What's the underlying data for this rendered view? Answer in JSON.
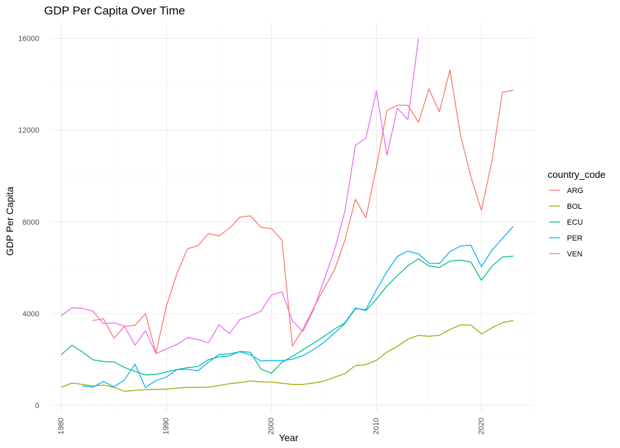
{
  "chart_data": {
    "type": "line",
    "title": "GDP Per Capita Over Time",
    "xlabel": "Year",
    "ylabel": "GDP Per Capita",
    "xlim": [
      1979,
      2025
    ],
    "ylim": [
      0,
      16000
    ],
    "x_ticks": [
      1980,
      1990,
      2000,
      2010,
      2020
    ],
    "y_ticks": [
      0,
      4000,
      8000,
      12000,
      16000
    ],
    "grid": true,
    "legend": {
      "title": "country_code",
      "position": "right"
    },
    "series": [
      {
        "name": "ARG",
        "color": "#F8766D",
        "points": [
          [
            1983,
            3700
          ],
          [
            1984,
            3770
          ],
          [
            1985,
            2920
          ],
          [
            1986,
            3440
          ],
          [
            1987,
            3480
          ],
          [
            1988,
            3990
          ],
          [
            1989,
            2290
          ],
          [
            1990,
            4330
          ],
          [
            1991,
            5750
          ],
          [
            1992,
            6820
          ],
          [
            1993,
            6960
          ],
          [
            1994,
            7480
          ],
          [
            1995,
            7390
          ],
          [
            1996,
            7710
          ],
          [
            1997,
            8200
          ],
          [
            1998,
            8260
          ],
          [
            1999,
            7760
          ],
          [
            2000,
            7700
          ],
          [
            2001,
            7210
          ],
          [
            2002,
            2580
          ],
          [
            2003,
            3320
          ],
          [
            2004,
            4220
          ],
          [
            2005,
            5090
          ],
          [
            2006,
            5890
          ],
          [
            2007,
            7200
          ],
          [
            2008,
            8980
          ],
          [
            2009,
            8170
          ],
          [
            2010,
            10380
          ],
          [
            2011,
            12850
          ],
          [
            2012,
            13080
          ],
          [
            2013,
            13080
          ],
          [
            2014,
            12330
          ],
          [
            2015,
            13790
          ],
          [
            2016,
            12790
          ],
          [
            2017,
            14620
          ],
          [
            2018,
            11790
          ],
          [
            2019,
            9950
          ],
          [
            2020,
            8500
          ],
          [
            2021,
            10640
          ],
          [
            2022,
            13650
          ],
          [
            2023,
            13730
          ]
        ]
      },
      {
        "name": "BOL",
        "color": "#A3A500",
        "points": [
          [
            1980,
            790
          ],
          [
            1981,
            970
          ],
          [
            1982,
            910
          ],
          [
            1983,
            840
          ],
          [
            1984,
            880
          ],
          [
            1985,
            790
          ],
          [
            1986,
            610
          ],
          [
            1987,
            650
          ],
          [
            1988,
            680
          ],
          [
            1989,
            690
          ],
          [
            1990,
            700
          ],
          [
            1991,
            750
          ],
          [
            1992,
            780
          ],
          [
            1993,
            780
          ],
          [
            1994,
            790
          ],
          [
            1995,
            860
          ],
          [
            1996,
            940
          ],
          [
            1997,
            990
          ],
          [
            1998,
            1060
          ],
          [
            1999,
            1020
          ],
          [
            2000,
            1010
          ],
          [
            2001,
            960
          ],
          [
            2002,
            910
          ],
          [
            2003,
            910
          ],
          [
            2004,
            970
          ],
          [
            2005,
            1050
          ],
          [
            2006,
            1220
          ],
          [
            2007,
            1380
          ],
          [
            2008,
            1730
          ],
          [
            2009,
            1770
          ],
          [
            2010,
            1960
          ],
          [
            2011,
            2320
          ],
          [
            2012,
            2570
          ],
          [
            2013,
            2880
          ],
          [
            2014,
            3050
          ],
          [
            2015,
            3010
          ],
          [
            2016,
            3050
          ],
          [
            2017,
            3300
          ],
          [
            2018,
            3500
          ],
          [
            2019,
            3500
          ],
          [
            2020,
            3110
          ],
          [
            2021,
            3380
          ],
          [
            2022,
            3600
          ],
          [
            2023,
            3690
          ]
        ]
      },
      {
        "name": "ECU",
        "color": "#00BF7D",
        "points": [
          [
            1980,
            2210
          ],
          [
            1981,
            2620
          ],
          [
            1982,
            2320
          ],
          [
            1983,
            1980
          ],
          [
            1984,
            1910
          ],
          [
            1985,
            1890
          ],
          [
            1986,
            1650
          ],
          [
            1987,
            1480
          ],
          [
            1988,
            1320
          ],
          [
            1989,
            1350
          ],
          [
            1990,
            1450
          ],
          [
            1991,
            1560
          ],
          [
            1992,
            1640
          ],
          [
            1993,
            1690
          ],
          [
            1994,
            1990
          ],
          [
            1995,
            2110
          ],
          [
            1996,
            2150
          ],
          [
            1997,
            2350
          ],
          [
            1998,
            2310
          ],
          [
            1999,
            1580
          ],
          [
            2000,
            1400
          ],
          [
            2001,
            1870
          ],
          [
            2002,
            2130
          ],
          [
            2003,
            2420
          ],
          [
            2004,
            2700
          ],
          [
            2005,
            3000
          ],
          [
            2006,
            3320
          ],
          [
            2007,
            3590
          ],
          [
            2008,
            4240
          ],
          [
            2009,
            4130
          ],
          [
            2010,
            4630
          ],
          [
            2011,
            5200
          ],
          [
            2012,
            5650
          ],
          [
            2013,
            6080
          ],
          [
            2014,
            6380
          ],
          [
            2015,
            6070
          ],
          [
            2016,
            6010
          ],
          [
            2017,
            6280
          ],
          [
            2018,
            6330
          ],
          [
            2019,
            6240
          ],
          [
            2020,
            5450
          ],
          [
            2021,
            6060
          ],
          [
            2022,
            6460
          ],
          [
            2023,
            6500
          ]
        ]
      },
      {
        "name": "PER",
        "color": "#00B0F6",
        "points": [
          [
            1982,
            840
          ],
          [
            1983,
            790
          ],
          [
            1984,
            1040
          ],
          [
            1985,
            800
          ],
          [
            1986,
            1110
          ],
          [
            1987,
            1790
          ],
          [
            1988,
            770
          ],
          [
            1989,
            1080
          ],
          [
            1990,
            1230
          ],
          [
            1991,
            1550
          ],
          [
            1992,
            1570
          ],
          [
            1993,
            1500
          ],
          [
            1994,
            1880
          ],
          [
            1995,
            2210
          ],
          [
            1996,
            2240
          ],
          [
            1997,
            2330
          ],
          [
            1998,
            2200
          ],
          [
            1999,
            1930
          ],
          [
            2000,
            1950
          ],
          [
            2001,
            1940
          ],
          [
            2002,
            2010
          ],
          [
            2003,
            2160
          ],
          [
            2004,
            2430
          ],
          [
            2005,
            2740
          ],
          [
            2006,
            3150
          ],
          [
            2007,
            3560
          ],
          [
            2008,
            4210
          ],
          [
            2009,
            4170
          ],
          [
            2010,
            5030
          ],
          [
            2011,
            5820
          ],
          [
            2012,
            6490
          ],
          [
            2013,
            6720
          ],
          [
            2014,
            6600
          ],
          [
            2015,
            6190
          ],
          [
            2016,
            6180
          ],
          [
            2017,
            6700
          ],
          [
            2018,
            6940
          ],
          [
            2019,
            6980
          ],
          [
            2020,
            6040
          ],
          [
            2021,
            6760
          ],
          [
            2022,
            7270
          ],
          [
            2023,
            7780
          ]
        ]
      },
      {
        "name": "VEN",
        "color": "#E76BF3",
        "points": [
          [
            1980,
            3910
          ],
          [
            1981,
            4250
          ],
          [
            1982,
            4220
          ],
          [
            1983,
            4100
          ],
          [
            1984,
            3560
          ],
          [
            1985,
            3590
          ],
          [
            1986,
            3450
          ],
          [
            1987,
            2620
          ],
          [
            1988,
            3250
          ],
          [
            1989,
            2250
          ],
          [
            1990,
            2460
          ],
          [
            1991,
            2650
          ],
          [
            1992,
            2950
          ],
          [
            1993,
            2870
          ],
          [
            1994,
            2720
          ],
          [
            1995,
            3510
          ],
          [
            1996,
            3120
          ],
          [
            1997,
            3740
          ],
          [
            1998,
            3900
          ],
          [
            1999,
            4100
          ],
          [
            2000,
            4800
          ],
          [
            2001,
            4950
          ],
          [
            2002,
            3680
          ],
          [
            2003,
            3220
          ],
          [
            2004,
            4150
          ],
          [
            2005,
            5450
          ],
          [
            2006,
            6760
          ],
          [
            2007,
            8460
          ],
          [
            2008,
            11330
          ],
          [
            2009,
            11650
          ],
          [
            2010,
            13700
          ],
          [
            2011,
            10900
          ],
          [
            2012,
            12950
          ],
          [
            2013,
            12450
          ],
          [
            2014,
            15970
          ]
        ]
      }
    ]
  }
}
